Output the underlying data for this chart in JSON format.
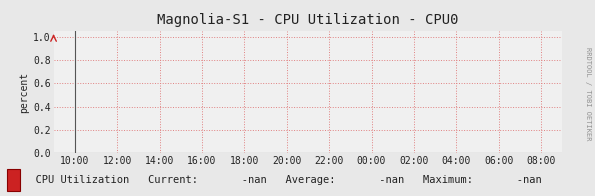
{
  "title": "Magnolia-S1 - CPU Utilization - CPU0",
  "ylabel": "percent",
  "bg_color": "#e8e8e8",
  "plot_bg_color": "#f0f0f0",
  "grid_color": "#e08080",
  "title_fontsize": 10,
  "right_label": "RRDTOOL / TOBI OETIKER",
  "x_ticks": [
    "10:00",
    "12:00",
    "14:00",
    "16:00",
    "18:00",
    "20:00",
    "22:00",
    "00:00",
    "02:00",
    "04:00",
    "06:00",
    "08:00"
  ],
  "y_ticks": [
    0.0,
    0.2,
    0.4,
    0.6,
    0.8,
    1.0
  ],
  "ylim": [
    0.0,
    1.05
  ],
  "legend_label": "CPU Utilization",
  "legend_color": "#cc2222",
  "arrow_color": "#cc2222",
  "font_color": "#222222",
  "tick_fontsize": 7,
  "ylabel_fontsize": 7
}
